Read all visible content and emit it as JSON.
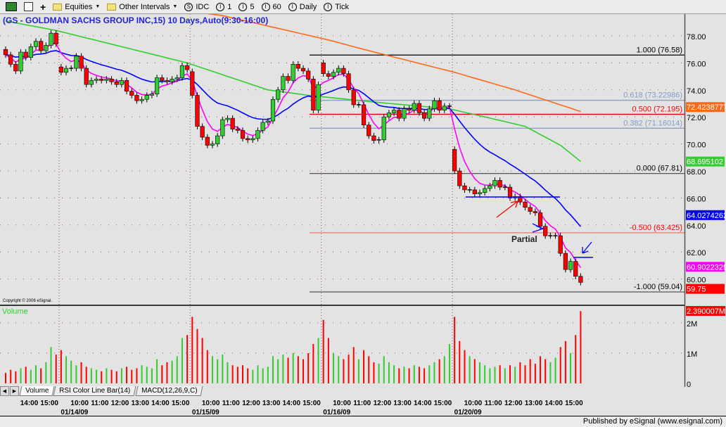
{
  "toolbar": {
    "items": [
      {
        "label": "Equities",
        "icon": "folder-icon",
        "dropdown": true
      },
      {
        "label": "Other Intervals",
        "icon": "folder-icon",
        "dropdown": true
      },
      {
        "label": "IDC",
        "icon": "s-circle-icon"
      },
      {
        "label": "1",
        "icon": "i-circle-icon"
      },
      {
        "label": "5",
        "icon": "i-circle-icon"
      },
      {
        "label": "60",
        "icon": "i-circle-icon"
      },
      {
        "label": "Daily",
        "icon": "i-circle-icon"
      },
      {
        "label": "Tick",
        "icon": "i-circle-icon"
      }
    ]
  },
  "chart_title": "(GS - GOLDMAN SACHS GROUP INC,15) 10 Days,Auto(9:30-16:00)",
  "copyright": "Copyright © 2006 eSignal.",
  "tabs": [
    "Volume",
    "RSI Color Line Bar(14)",
    "MACD(12,26,9,C)"
  ],
  "status_text": "Published by eSignal (www.esignal.com)",
  "chart_data": {
    "type": "candlestick",
    "interval": "15 min",
    "price_axis": {
      "ylim": [
        59,
        79
      ],
      "ticks": [
        "60.00",
        "62.00",
        "64.00",
        "66.00",
        "68.00",
        "70.00",
        "72.00",
        "74.00",
        "76.00",
        "78.00"
      ]
    },
    "days": [
      {
        "date": "",
        "times": [
          "14:00",
          "15:00"
        ],
        "open": 77.0,
        "close": [
          76.6,
          75.9,
          75.4,
          76.8,
          76.4,
          77.2,
          77.6,
          76.9,
          77.3,
          78.2,
          77.4
        ],
        "volume": [
          0.35,
          0.45,
          0.4,
          0.5,
          0.55,
          0.45,
          0.6,
          0.5,
          0.7,
          1.2,
          0.95
        ]
      },
      {
        "date": "01/14/09",
        "times": [
          "10:00",
          "11:00",
          "12:00",
          "13:00",
          "14:00",
          "15:00"
        ],
        "open": 75.7,
        "close": [
          75.3,
          75.6,
          75.6,
          76.5,
          75.6,
          74.4,
          74.7,
          74.8,
          74.7,
          74.8,
          74.6,
          74.4,
          74.7,
          73.9,
          73.6,
          73.2,
          73.3,
          73.6,
          73.7,
          74.9,
          74.7,
          74.6,
          74.8,
          74.9,
          75.8,
          75.5
        ],
        "volume": [
          1.1,
          0.9,
          0.75,
          0.6,
          0.7,
          0.55,
          0.5,
          0.45,
          0.4,
          0.5,
          0.45,
          0.4,
          0.5,
          0.55,
          0.45,
          0.5,
          0.6,
          0.55,
          0.5,
          0.8,
          0.6,
          0.7,
          0.75,
          0.9,
          1.5,
          1.6
        ]
      },
      {
        "date": "01/15/09",
        "times": [
          "10:00",
          "11:00",
          "12:00",
          "13:00",
          "14:00",
          "15:00"
        ],
        "open": 75.35,
        "close": [
          73.6,
          71.3,
          70.5,
          69.9,
          70.0,
          70.6,
          71.8,
          71.9,
          71.1,
          71.0,
          70.4,
          70.3,
          70.4,
          71.0,
          71.6,
          71.7,
          73.3,
          74.0,
          75.0,
          74.7,
          75.9,
          75.6,
          75.4,
          74.8,
          72.5,
          74.4
        ],
        "volume": [
          2.2,
          1.8,
          1.5,
          1.1,
          0.9,
          0.8,
          0.95,
          0.7,
          0.6,
          0.55,
          0.6,
          0.5,
          0.45,
          0.6,
          0.5,
          0.55,
          0.9,
          0.8,
          0.95,
          0.85,
          1.0,
          0.9,
          0.8,
          1.0,
          1.3,
          1.5
        ]
      },
      {
        "date": "01/16/09",
        "times": [
          "10:00",
          "11:00",
          "12:00",
          "13:00",
          "14:00",
          "15:00"
        ],
        "open": 76.0,
        "close": [
          75.2,
          75.0,
          75.3,
          75.6,
          75.2,
          74.0,
          72.9,
          72.9,
          71.4,
          70.6,
          70.25,
          70.3,
          72.0,
          72.3,
          72.5,
          71.9,
          72.6,
          72.5,
          73.0,
          72.3,
          71.9,
          72.6,
          73.2,
          72.5,
          72.8,
          72.8
        ],
        "volume": [
          2.1,
          1.5,
          1.0,
          0.9,
          0.8,
          0.95,
          1.2,
          0.8,
          1.1,
          0.9,
          0.7,
          0.65,
          0.9,
          0.7,
          0.6,
          0.5,
          0.55,
          0.5,
          0.6,
          0.55,
          0.5,
          0.6,
          0.7,
          0.8,
          0.9,
          1.3
        ]
      },
      {
        "date": "01/20/09",
        "times": [
          "10:00",
          "11:00",
          "12:00",
          "13:00",
          "14:00",
          "15:00"
        ],
        "open": 69.6,
        "close": [
          68.0,
          66.9,
          66.6,
          66.6,
          66.3,
          66.4,
          66.7,
          66.9,
          67.3,
          66.8,
          66.8,
          66.0,
          66.1,
          65.7,
          65.3,
          65.0,
          64.9,
          63.9,
          63.2,
          63.2,
          63.2,
          61.9,
          60.7,
          61.3,
          60.2,
          59.75
        ],
        "volume": [
          2.2,
          1.4,
          1.1,
          0.9,
          0.8,
          0.7,
          0.6,
          0.5,
          0.55,
          0.6,
          0.5,
          0.6,
          0.55,
          0.7,
          0.6,
          0.8,
          0.65,
          0.9,
          0.8,
          0.7,
          0.85,
          1.2,
          1.4,
          1.0,
          1.6,
          2.39
        ]
      }
    ],
    "moving_averages": [
      {
        "color": "#ff00ff",
        "last_value": "60.9022329",
        "ema_period": 5
      },
      {
        "color": "#0000ff",
        "last_value": "64.0274262",
        "ema_period": 20
      },
      {
        "color": "#33cc33",
        "last_value": "68.695102",
        "points": [
          [
            0,
            79.1
          ],
          [
            10,
            78.4
          ],
          [
            36,
            76.0
          ],
          [
            52,
            74.0
          ],
          [
            60,
            73.6
          ],
          [
            73,
            73.1
          ],
          [
            88,
            72.6
          ],
          [
            95,
            72.0
          ],
          [
            103,
            71.3
          ],
          [
            110,
            69.9
          ],
          [
            114,
            68.7
          ]
        ]
      },
      {
        "color": "#ff6a1a",
        "last_value": "72.4238777",
        "points": [
          [
            39,
            79.7
          ],
          [
            43,
            79.5
          ],
          [
            64,
            77.7
          ],
          [
            71,
            77.0
          ],
          [
            89,
            75.3
          ],
          [
            101,
            74.0
          ],
          [
            114,
            72.4
          ]
        ]
      }
    ],
    "last_price": {
      "value": "59.75",
      "color": "#ff0000"
    },
    "fibonacci": [
      {
        "label": "1.000 (76.58)",
        "price": 76.58,
        "color": "#000000",
        "label_color": "#000000"
      },
      {
        "label": "0.618 (73.22986)",
        "price": 73.22986,
        "color": "#8aa0c0",
        "label_color": "#7f9cc4"
      },
      {
        "label": "0.500 (72.195)",
        "price": 72.195,
        "color": "#e00000",
        "label_color": "#ff0000"
      },
      {
        "label": "0.382 (71.16014)",
        "price": 71.16014,
        "color": "#8aa0c0",
        "label_color": "#7f9cc4"
      },
      {
        "label": "0.000 (67.81)",
        "price": 67.81,
        "color": "#555555",
        "label_color": "#000000"
      },
      {
        "label": "-0.500 (63.425)",
        "price": 63.425,
        "color": "#f07070",
        "label_color": "#ff0000"
      },
      {
        "label": "-1.000 (59.04)",
        "price": 59.04,
        "color": "#555555",
        "label_color": "#000000"
      }
    ],
    "annotations": {
      "partial_label": "Partial",
      "support_line_price": 66.07,
      "entry_line_price": 61.6
    },
    "volume_panel": {
      "label": "Volume",
      "ticks": [
        "0",
        "1M",
        "2M"
      ],
      "last_value": "2.390007M",
      "up_color": "#33cc33",
      "down_color": "#ff0000"
    }
  }
}
